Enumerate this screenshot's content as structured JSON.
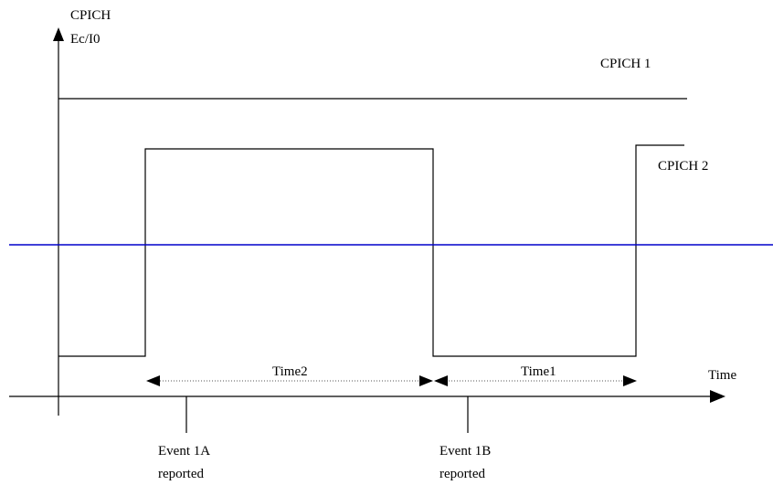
{
  "y_axis": {
    "label_line1": "CPICH",
    "label_line2": "Ec/I0"
  },
  "x_axis": {
    "label": "Time"
  },
  "signals": {
    "cpich1": {
      "label": "CPICH 1"
    },
    "cpich2": {
      "label": "CPICH 2"
    }
  },
  "intervals": {
    "time2": "Time2",
    "time1": "Time1"
  },
  "events": {
    "event_1a": {
      "line1": "Event 1A",
      "line2": "reported"
    },
    "event_1b": {
      "line1": "Event 1B",
      "line2": "reported"
    }
  },
  "colors": {
    "ink": "#000000",
    "threshold": "#0000cc",
    "dotted": "#555555"
  }
}
